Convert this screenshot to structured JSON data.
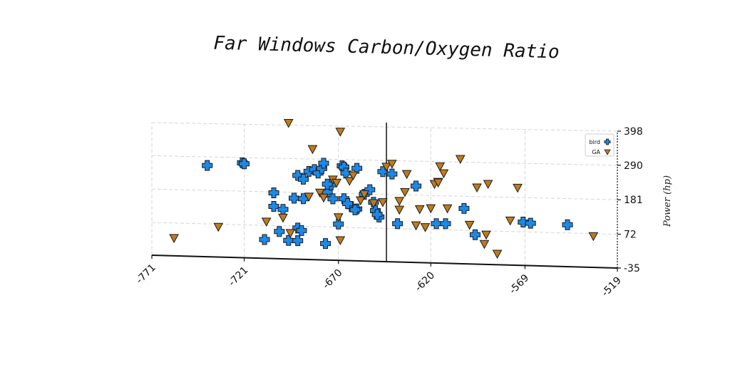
{
  "chart_data": {
    "type": "scatter",
    "title": "Far Windows Carbon/Oxygen Ratio",
    "xlabel": "",
    "ylabel": "Power (hp)",
    "xlim": [
      -771,
      -519
    ],
    "ylim": [
      -35,
      398
    ],
    "xticks": [
      "-771",
      "-721",
      "-670",
      "-620",
      "-569",
      "-519"
    ],
    "yticks": [
      "-35",
      "72",
      "181",
      "290",
      "398"
    ],
    "xtick_values": [
      -771,
      -721,
      -670,
      -620,
      -569,
      -519
    ],
    "ytick_values": [
      -35,
      72,
      181,
      290,
      398
    ],
    "grid": true,
    "vline_x": -644,
    "legend_position": "top-right",
    "series": [
      {
        "name": "bird",
        "marker": "plus",
        "color": "#1e88e5",
        "points": [
          [
            -741,
            262
          ],
          [
            -722,
            273
          ],
          [
            -721,
            270
          ],
          [
            -710,
            26
          ],
          [
            -705,
            178
          ],
          [
            -705,
            134
          ],
          [
            -702,
            53
          ],
          [
            -700,
            125
          ],
          [
            -697,
            25
          ],
          [
            -694,
            162
          ],
          [
            -692,
            66
          ],
          [
            -692,
            236
          ],
          [
            -689,
            224
          ],
          [
            -692,
            25
          ],
          [
            -690,
            58
          ],
          [
            -686,
            250
          ],
          [
            -683,
            256
          ],
          [
            -681,
            245
          ],
          [
            -679,
            260
          ],
          [
            -678,
            277
          ],
          [
            -676,
            184
          ],
          [
            -674,
            208
          ],
          [
            -673,
            163
          ],
          [
            -668,
            270
          ],
          [
            -667,
            266
          ],
          [
            -666,
            247
          ],
          [
            -663,
            139
          ],
          [
            -660,
            132
          ],
          [
            -660,
            263
          ],
          [
            -656,
            180
          ],
          [
            -653,
            195
          ],
          [
            -651,
            155
          ],
          [
            -650,
            128
          ],
          [
            -648,
            108
          ],
          [
            -646,
            254
          ],
          [
            -641,
            247
          ],
          [
            -638,
            88
          ],
          [
            -628,
            210
          ],
          [
            -617,
            91
          ],
          [
            -612,
            92
          ],
          [
            -602,
            142
          ],
          [
            -596,
            59
          ],
          [
            -570,
            103
          ],
          [
            -566,
            100
          ],
          [
            -546,
            98
          ],
          [
            -677,
            18
          ],
          [
            -689,
            161
          ],
          [
            -667,
            164
          ],
          [
            -665,
            149
          ],
          [
            -661,
            129
          ],
          [
            -649,
            116
          ],
          [
            -676,
            210
          ],
          [
            -670,
            82
          ]
        ]
      },
      {
        "name": "GA",
        "marker": "triangle-down",
        "color": "#c07a1c",
        "points": [
          [
            -759,
            23
          ],
          [
            -735,
            63
          ],
          [
            -709,
            84
          ],
          [
            -700,
            98
          ],
          [
            -696,
            49
          ],
          [
            -697,
            405
          ],
          [
            -684,
            322
          ],
          [
            -686,
            168
          ],
          [
            -680,
            182
          ],
          [
            -678,
            166
          ],
          [
            -673,
            225
          ],
          [
            -670,
            104
          ],
          [
            -671,
            215
          ],
          [
            -669,
            30
          ],
          [
            -669,
            380
          ],
          [
            -664,
            222
          ],
          [
            -662,
            240
          ],
          [
            -658,
            160
          ],
          [
            -656,
            180
          ],
          [
            -651,
            152
          ],
          [
            -646,
            156
          ],
          [
            -644,
            270
          ],
          [
            -641,
            280
          ],
          [
            -637,
            133
          ],
          [
            -633,
            248
          ],
          [
            -628,
            84
          ],
          [
            -623,
            79
          ],
          [
            -620,
            140
          ],
          [
            -618,
            218
          ],
          [
            -616,
            225
          ],
          [
            -615,
            275
          ],
          [
            -613,
            253
          ],
          [
            -611,
            141
          ],
          [
            -604,
            300
          ],
          [
            -599,
            90
          ],
          [
            -595,
            210
          ],
          [
            -590,
            60
          ],
          [
            -584,
            0
          ],
          [
            -591,
            30
          ],
          [
            -589,
            222
          ],
          [
            -577,
            107
          ],
          [
            -573,
            212
          ],
          [
            -532,
            64
          ],
          [
            -634,
            190
          ],
          [
            -637,
            161
          ],
          [
            -626,
            136
          ],
          [
            -616,
            223
          ]
        ]
      }
    ]
  }
}
